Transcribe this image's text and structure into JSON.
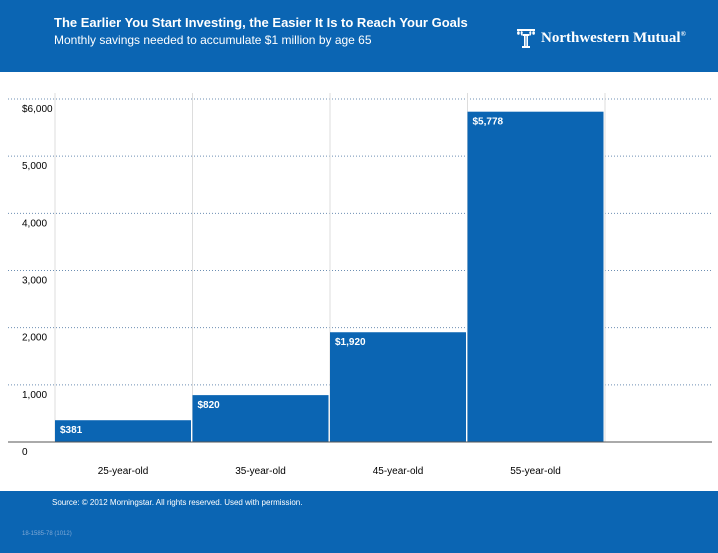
{
  "header": {
    "title": "The Earlier You Start Investing, the Easier It Is to Reach Your Goals",
    "subtitle": "Monthly savings needed to accumulate $1 million by age 65",
    "logo_text": "Northwestern Mutual",
    "logo_mark": "®"
  },
  "footer": {
    "source": "Source: © 2012 Morningstar. All rights reserved. Used with permission.",
    "doc_id": "18-1585-78 (1012)"
  },
  "colors": {
    "brand": "#0b65b3",
    "bar": "#0b65b3",
    "grid": "#6d8fb3"
  },
  "chart_data": {
    "type": "bar",
    "categories": [
      "25-year-old",
      "35-year-old",
      "45-year-old",
      "55-year-old"
    ],
    "values": [
      381,
      820,
      1920,
      5778
    ],
    "value_labels": [
      "$381",
      "$820",
      "$1,920",
      "$5,778"
    ],
    "ylim": [
      0,
      6000
    ],
    "yticks": [
      0,
      1000,
      2000,
      3000,
      4000,
      5000,
      6000
    ],
    "ytick_labels": [
      "0",
      "1,000",
      "2,000",
      "3,000",
      "4,000",
      "5,000",
      "$6,000"
    ],
    "grid": true
  }
}
